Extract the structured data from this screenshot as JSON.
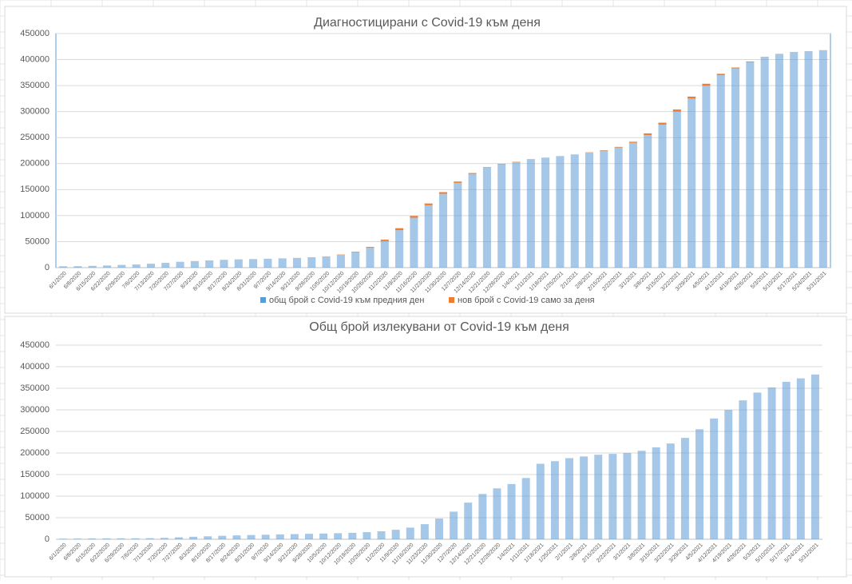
{
  "chart_data": [
    {
      "type": "bar",
      "title": "Диагностицирани с Covid-19 към деня",
      "categories": [
        "6/1/2020",
        "6/8/2020",
        "6/15/2020",
        "6/22/2020",
        "6/29/2020",
        "7/6/2020",
        "7/13/2020",
        "7/20/2020",
        "7/27/2020",
        "8/3/2020",
        "8/10/2020",
        "8/17/2020",
        "8/24/2020",
        "8/31/2020",
        "9/7/2020",
        "9/14/2020",
        "9/21/2020",
        "9/28/2020",
        "10/5/2020",
        "10/12/2020",
        "10/19/2020",
        "10/26/2020",
        "11/2/2020",
        "11/9/2020",
        "11/16/2020",
        "11/23/2020",
        "11/30/2020",
        "12/7/2020",
        "12/14/2020",
        "12/21/2020",
        "12/28/2020",
        "1/4/2021",
        "1/11/2021",
        "1/18/2021",
        "1/25/2021",
        "2/1/2021",
        "2/8/2021",
        "2/15/2021",
        "2/22/2021",
        "3/1/2021",
        "3/8/2021",
        "3/15/2021",
        "3/22/2021",
        "3/29/2021",
        "4/5/2021",
        "4/12/2021",
        "4/19/2021",
        "4/26/2021",
        "5/3/2021",
        "5/10/2021",
        "5/17/2021",
        "5/24/2021",
        "5/31/2021"
      ],
      "series": [
        {
          "name": "общ брой с Covid-19 към предния ден",
          "color": "#5b9bd5",
          "values": [
            2500,
            2700,
            3300,
            4000,
            5100,
            6000,
            7300,
            8900,
            10900,
            12400,
            13700,
            14800,
            15800,
            16300,
            17000,
            17700,
            18600,
            19800,
            21300,
            24400,
            29500,
            38000,
            51000,
            72000,
            96000,
            120000,
            142000,
            163000,
            180000,
            192000,
            199000,
            203000,
            208000,
            211000,
            214000,
            217000,
            221000,
            225000,
            231000,
            240000,
            255000,
            275000,
            300000,
            325000,
            350000,
            370000,
            383000,
            395000,
            404000,
            410000,
            414000,
            416000,
            418000
          ]
        },
        {
          "name": "нов брой с Covid-19 само за деня",
          "color": "#ed7d31",
          "values": [
            20,
            90,
            100,
            110,
            160,
            130,
            200,
            240,
            250,
            170,
            170,
            140,
            130,
            80,
            100,
            110,
            140,
            190,
            330,
            700,
            1100,
            1800,
            2900,
            3800,
            3400,
            3300,
            3100,
            2500,
            1900,
            1000,
            700,
            600,
            500,
            400,
            400,
            500,
            650,
            800,
            1200,
            2000,
            3000,
            3600,
            4000,
            3800,
            3500,
            2600,
            1700,
            1300,
            900,
            700,
            400,
            200,
            100
          ]
        }
      ],
      "ylim": [
        0,
        450000
      ],
      "yticks": [
        0,
        50000,
        100000,
        150000,
        200000,
        250000,
        300000,
        350000,
        400000,
        450000
      ],
      "grid": true
    },
    {
      "type": "bar",
      "title": "Общ брой излекувани от Covid-19 към деня",
      "categories": [
        "6/1/2020",
        "6/8/2020",
        "6/15/2020",
        "6/22/2020",
        "6/29/2020",
        "7/6/2020",
        "7/13/2020",
        "7/20/2020",
        "7/27/2020",
        "8/3/2020",
        "8/10/2020",
        "8/17/2020",
        "8/24/2020",
        "8/31/2020",
        "9/7/2020",
        "9/14/2020",
        "9/21/2020",
        "9/28/2020",
        "10/5/2020",
        "10/12/2020",
        "10/19/2020",
        "10/26/2020",
        "11/2/2020",
        "11/9/2020",
        "11/16/2020",
        "11/23/2020",
        "11/30/2020",
        "12/7/2020",
        "12/14/2020",
        "12/21/2020",
        "12/28/2020",
        "1/4/2021",
        "1/11/2021",
        "1/18/2021",
        "1/25/2021",
        "2/1/2021",
        "2/8/2021",
        "2/15/2021",
        "2/22/2021",
        "3/1/2021",
        "3/8/2021",
        "3/15/2021",
        "3/22/2021",
        "3/29/2021",
        "4/5/2021",
        "4/12/2021",
        "4/19/2021",
        "4/26/2021",
        "5/3/2021",
        "5/10/2021",
        "5/17/2021",
        "5/24/2021",
        "5/31/2021"
      ],
      "color": "#5b9bd5",
      "values": [
        1300,
        1500,
        1800,
        1900,
        2000,
        2100,
        2400,
        3200,
        4500,
        5800,
        6900,
        8000,
        9000,
        9800,
        10500,
        11300,
        12000,
        12700,
        13300,
        14100,
        15000,
        16500,
        18500,
        22000,
        27000,
        35000,
        48000,
        64000,
        85000,
        105000,
        118000,
        128000,
        142000,
        175000,
        181000,
        188000,
        192000,
        196000,
        198000,
        200000,
        205000,
        213000,
        222000,
        235000,
        255000,
        280000,
        300000,
        322000,
        340000,
        352000,
        365000,
        373000,
        382000
      ],
      "ylim": [
        0,
        450000
      ],
      "yticks": [
        0,
        50000,
        100000,
        150000,
        200000,
        250000,
        300000,
        350000,
        400000,
        450000
      ],
      "grid": true
    }
  ]
}
